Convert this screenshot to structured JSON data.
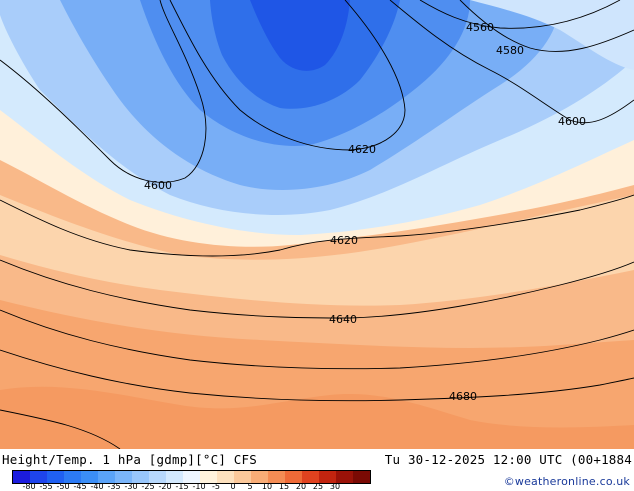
{
  "map": {
    "contour_labels": [
      "4560",
      "4580",
      "4600",
      "4600",
      "4620",
      "4620",
      "4640",
      "4680"
    ]
  },
  "footer": {
    "title": "Height/Temp. 1 hPa [gdmp][°C] CFS",
    "datetime": "Tu 30-12-2025 12:00 UTC (00+1884",
    "credit": "©weatheronline.co.uk",
    "scale_ticks": [
      "-80",
      "-55",
      "-50",
      "-45",
      "-40",
      "-35",
      "-30",
      "-25",
      "-20",
      "-15",
      "-10",
      "-5",
      "0",
      "5",
      "10",
      "15",
      "20",
      "25",
      "30"
    ],
    "scale_colors": [
      "#1c1cdd",
      "#1e44ec",
      "#2060f2",
      "#2c7af5",
      "#3b8ef6",
      "#5aa3f8",
      "#7ab5fa",
      "#98c6fb",
      "#b7d8fc",
      "#d3e9fe",
      "#eef6ff",
      "#fff3dd",
      "#fde1be",
      "#fbc89a",
      "#f8ac76",
      "#f48c54",
      "#ef6a37",
      "#e0421f",
      "#c2240f",
      "#9a1208",
      "#7a0a04"
    ]
  }
}
